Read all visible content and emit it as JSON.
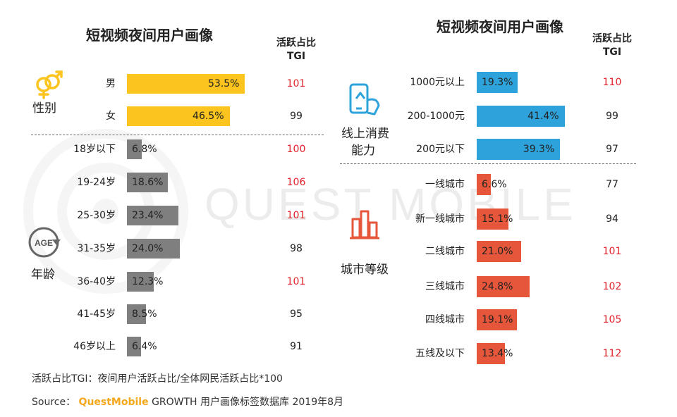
{
  "watermark": "QUEST MOBILE",
  "colors": {
    "gender": "#fcc41e",
    "age": "#7f7f7f",
    "consumption": "#2ea3db",
    "city": "#e5563a",
    "tgi_high": "#e0202c",
    "tgi_normal": "#222222"
  },
  "icons": {
    "gender": "gender-symbol-icon",
    "age": "age-badge-icon",
    "consumption": "mobile-payment-icon",
    "city": "city-buildings-icon"
  },
  "footer": {
    "note": "活跃占比TGI：夜间用户活跃占比/全体网民活跃占比*100",
    "source_prefix": "Source：",
    "source_brand": "QuestMobile",
    "source_suffix": "GROWTH 用户画像标签数据库 2019年8月"
  },
  "chart_data": [
    {
      "type": "bar",
      "orientation": "horizontal",
      "title": "短视频夜间用户画像",
      "tgi_header_line1": "活跃占比",
      "tgi_header_line2": "TGI",
      "xlim": [
        0,
        60
      ],
      "value_unit": "%",
      "groups": [
        {
          "name": "性别",
          "icon": "gender",
          "color_key": "gender",
          "categories": [
            "男",
            "女"
          ],
          "values": [
            53.5,
            46.5
          ],
          "tgi": [
            101,
            99
          ]
        },
        {
          "name": "年龄",
          "icon": "age",
          "color_key": "age",
          "categories": [
            "18岁以下",
            "19-24岁",
            "25-30岁",
            "31-35岁",
            "36-40岁",
            "41-45岁",
            "46岁以上"
          ],
          "values": [
            6.8,
            18.6,
            23.4,
            24.0,
            12.3,
            8.5,
            6.4
          ],
          "tgi": [
            100,
            106,
            101,
            98,
            101,
            95,
            91
          ]
        }
      ]
    },
    {
      "type": "bar",
      "orientation": "horizontal",
      "title": "短视频夜间用户画像",
      "tgi_header_line1": "活跃占比",
      "tgi_header_line2": "TGI",
      "xlim": [
        0,
        60
      ],
      "value_unit": "%",
      "groups": [
        {
          "name": "线上消费能力",
          "name_line1": "线上消费",
          "name_line2": "能力",
          "icon": "consumption",
          "color_key": "consumption",
          "categories": [
            "1000元以上",
            "200-1000元",
            "200元以下"
          ],
          "values": [
            19.3,
            41.4,
            39.3
          ],
          "tgi": [
            110,
            99,
            97
          ]
        },
        {
          "name": "城市等级",
          "icon": "city",
          "color_key": "city",
          "categories": [
            "一线城市",
            "新一线城市",
            "二线城市",
            "三线城市",
            "四线城市",
            "五线及以下"
          ],
          "values": [
            6.6,
            15.1,
            21.0,
            24.8,
            19.1,
            13.4
          ],
          "tgi": [
            77,
            94,
            101,
            102,
            105,
            112
          ]
        }
      ]
    }
  ]
}
